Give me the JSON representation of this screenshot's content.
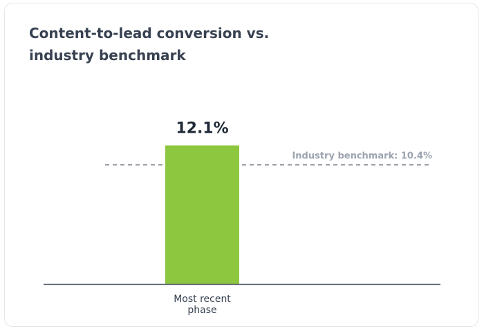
{
  "chart_data": {
    "type": "bar",
    "title": "Content-to-lead conversion vs. industry benchmark",
    "title_lines": [
      "Content-to-lead conversion vs.",
      "industry benchmark"
    ],
    "categories": [
      "Most recent phase"
    ],
    "category_label_lines": [
      [
        "Most recent",
        "phase"
      ]
    ],
    "values": [
      12.1
    ],
    "value_labels": [
      "12.1%"
    ],
    "unit": "%",
    "ylim": [
      0,
      14
    ],
    "grid": false,
    "bar_color": "#8dc63f",
    "benchmark": {
      "value": 10.4,
      "label": "Industry benchmark: 10.4%",
      "color": "#6b7280",
      "style": "dashed"
    }
  }
}
